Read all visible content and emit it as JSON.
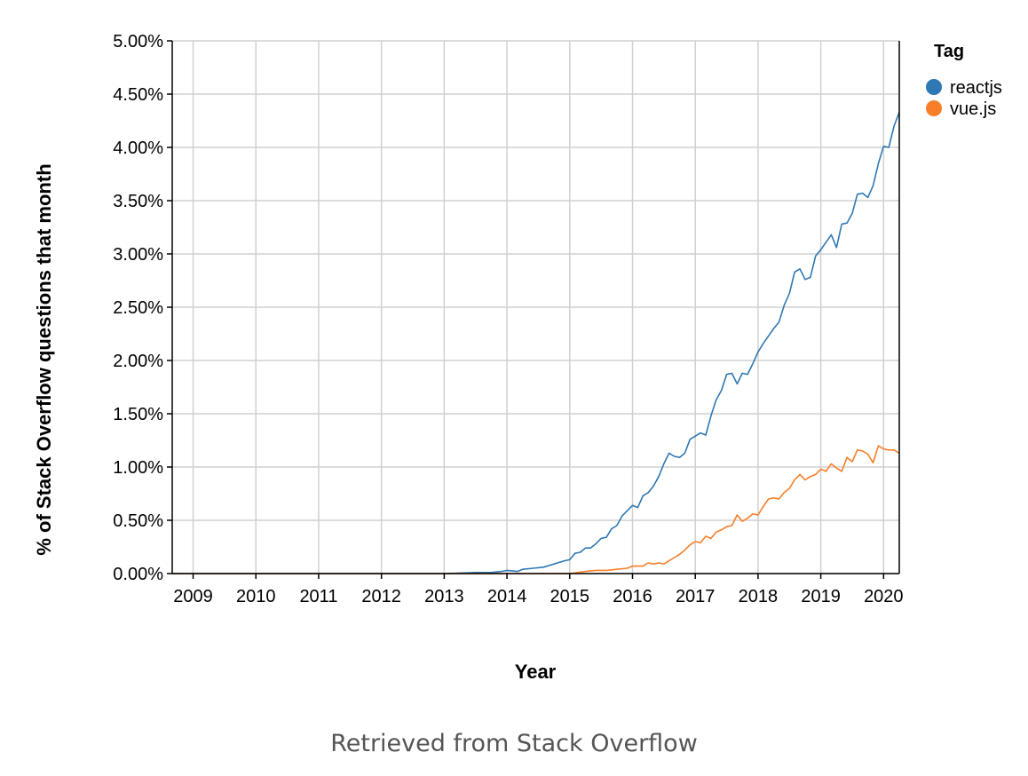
{
  "chart_data": {
    "type": "line",
    "xlabel": "Year",
    "ylabel": "% of Stack Overflow questions that month",
    "xlim": [
      2008.667,
      2020.25
    ],
    "ylim": [
      0,
      5.0
    ],
    "x_ticks": [
      "2009",
      "2010",
      "2011",
      "2012",
      "2013",
      "2014",
      "2015",
      "2016",
      "2017",
      "2018",
      "2019",
      "2020"
    ],
    "y_ticks": [
      "0.00%",
      "0.50%",
      "1.00%",
      "1.50%",
      "2.00%",
      "2.50%",
      "3.00%",
      "3.50%",
      "4.00%",
      "4.50%",
      "5.00%"
    ],
    "grid": true,
    "legend": {
      "title": "Tag",
      "position": "top-right"
    },
    "series": [
      {
        "name": "reactjs",
        "color": "#2e78b4",
        "points": [
          [
            2008.667,
            0
          ],
          [
            2013.0,
            0
          ],
          [
            2013.5,
            0.01
          ],
          [
            2013.75,
            0.01
          ],
          [
            2013.917,
            0.02
          ],
          [
            2014.0,
            0.03
          ],
          [
            2014.167,
            0.02
          ],
          [
            2014.25,
            0.04
          ],
          [
            2014.417,
            0.05
          ],
          [
            2014.583,
            0.06
          ],
          [
            2014.75,
            0.09
          ],
          [
            2014.917,
            0.12
          ],
          [
            2015.0,
            0.13
          ],
          [
            2015.083,
            0.19
          ],
          [
            2015.167,
            0.2
          ],
          [
            2015.25,
            0.24
          ],
          [
            2015.333,
            0.24
          ],
          [
            2015.417,
            0.28
          ],
          [
            2015.5,
            0.33
          ],
          [
            2015.583,
            0.34
          ],
          [
            2015.667,
            0.42
          ],
          [
            2015.75,
            0.45
          ],
          [
            2015.833,
            0.54
          ],
          [
            2015.917,
            0.59
          ],
          [
            2016.0,
            0.64
          ],
          [
            2016.083,
            0.62
          ],
          [
            2016.167,
            0.73
          ],
          [
            2016.25,
            0.76
          ],
          [
            2016.333,
            0.82
          ],
          [
            2016.417,
            0.91
          ],
          [
            2016.5,
            1.03
          ],
          [
            2016.583,
            1.13
          ],
          [
            2016.667,
            1.1
          ],
          [
            2016.75,
            1.09
          ],
          [
            2016.833,
            1.13
          ],
          [
            2016.917,
            1.26
          ],
          [
            2017.0,
            1.29
          ],
          [
            2017.083,
            1.32
          ],
          [
            2017.167,
            1.3
          ],
          [
            2017.25,
            1.48
          ],
          [
            2017.333,
            1.63
          ],
          [
            2017.417,
            1.72
          ],
          [
            2017.5,
            1.87
          ],
          [
            2017.583,
            1.88
          ],
          [
            2017.667,
            1.78
          ],
          [
            2017.75,
            1.88
          ],
          [
            2017.833,
            1.87
          ],
          [
            2017.917,
            1.97
          ],
          [
            2018.0,
            2.08
          ],
          [
            2018.083,
            2.16
          ],
          [
            2018.167,
            2.23
          ],
          [
            2018.25,
            2.3
          ],
          [
            2018.333,
            2.36
          ],
          [
            2018.417,
            2.52
          ],
          [
            2018.5,
            2.63
          ],
          [
            2018.583,
            2.83
          ],
          [
            2018.667,
            2.86
          ],
          [
            2018.75,
            2.76
          ],
          [
            2018.833,
            2.78
          ],
          [
            2018.917,
            2.98
          ],
          [
            2019.0,
            3.04
          ],
          [
            2019.083,
            3.11
          ],
          [
            2019.167,
            3.18
          ],
          [
            2019.25,
            3.06
          ],
          [
            2019.333,
            3.28
          ],
          [
            2019.417,
            3.29
          ],
          [
            2019.5,
            3.38
          ],
          [
            2019.583,
            3.56
          ],
          [
            2019.667,
            3.57
          ],
          [
            2019.75,
            3.53
          ],
          [
            2019.833,
            3.64
          ],
          [
            2019.917,
            3.85
          ],
          [
            2020.0,
            4.01
          ],
          [
            2020.083,
            4.0
          ],
          [
            2020.167,
            4.2
          ],
          [
            2020.25,
            4.33
          ]
        ]
      },
      {
        "name": "vue.js",
        "color": "#f77f2a",
        "points": [
          [
            2008.667,
            0
          ],
          [
            2015.0,
            0
          ],
          [
            2015.25,
            0.02
          ],
          [
            2015.417,
            0.03
          ],
          [
            2015.583,
            0.03
          ],
          [
            2015.75,
            0.04
          ],
          [
            2015.917,
            0.05
          ],
          [
            2016.0,
            0.07
          ],
          [
            2016.083,
            0.07
          ],
          [
            2016.167,
            0.07
          ],
          [
            2016.25,
            0.1
          ],
          [
            2016.333,
            0.09
          ],
          [
            2016.417,
            0.1
          ],
          [
            2016.5,
            0.09
          ],
          [
            2016.583,
            0.12
          ],
          [
            2016.667,
            0.15
          ],
          [
            2016.75,
            0.18
          ],
          [
            2016.833,
            0.22
          ],
          [
            2016.917,
            0.27
          ],
          [
            2017.0,
            0.3
          ],
          [
            2017.083,
            0.29
          ],
          [
            2017.167,
            0.35
          ],
          [
            2017.25,
            0.33
          ],
          [
            2017.333,
            0.39
          ],
          [
            2017.417,
            0.41
          ],
          [
            2017.5,
            0.44
          ],
          [
            2017.583,
            0.45
          ],
          [
            2017.667,
            0.55
          ],
          [
            2017.75,
            0.49
          ],
          [
            2017.833,
            0.52
          ],
          [
            2017.917,
            0.56
          ],
          [
            2018.0,
            0.55
          ],
          [
            2018.083,
            0.63
          ],
          [
            2018.167,
            0.7
          ],
          [
            2018.25,
            0.71
          ],
          [
            2018.333,
            0.7
          ],
          [
            2018.417,
            0.76
          ],
          [
            2018.5,
            0.8
          ],
          [
            2018.583,
            0.88
          ],
          [
            2018.667,
            0.93
          ],
          [
            2018.75,
            0.88
          ],
          [
            2018.833,
            0.91
          ],
          [
            2018.917,
            0.93
          ],
          [
            2019.0,
            0.98
          ],
          [
            2019.083,
            0.96
          ],
          [
            2019.167,
            1.03
          ],
          [
            2019.25,
            0.99
          ],
          [
            2019.333,
            0.96
          ],
          [
            2019.417,
            1.09
          ],
          [
            2019.5,
            1.05
          ],
          [
            2019.583,
            1.16
          ],
          [
            2019.667,
            1.15
          ],
          [
            2019.75,
            1.12
          ],
          [
            2019.833,
            1.04
          ],
          [
            2019.917,
            1.2
          ],
          [
            2020.0,
            1.17
          ],
          [
            2020.083,
            1.16
          ],
          [
            2020.167,
            1.16
          ],
          [
            2020.25,
            1.13
          ]
        ]
      }
    ]
  },
  "source_note": "Retrieved from Stack Overflow"
}
